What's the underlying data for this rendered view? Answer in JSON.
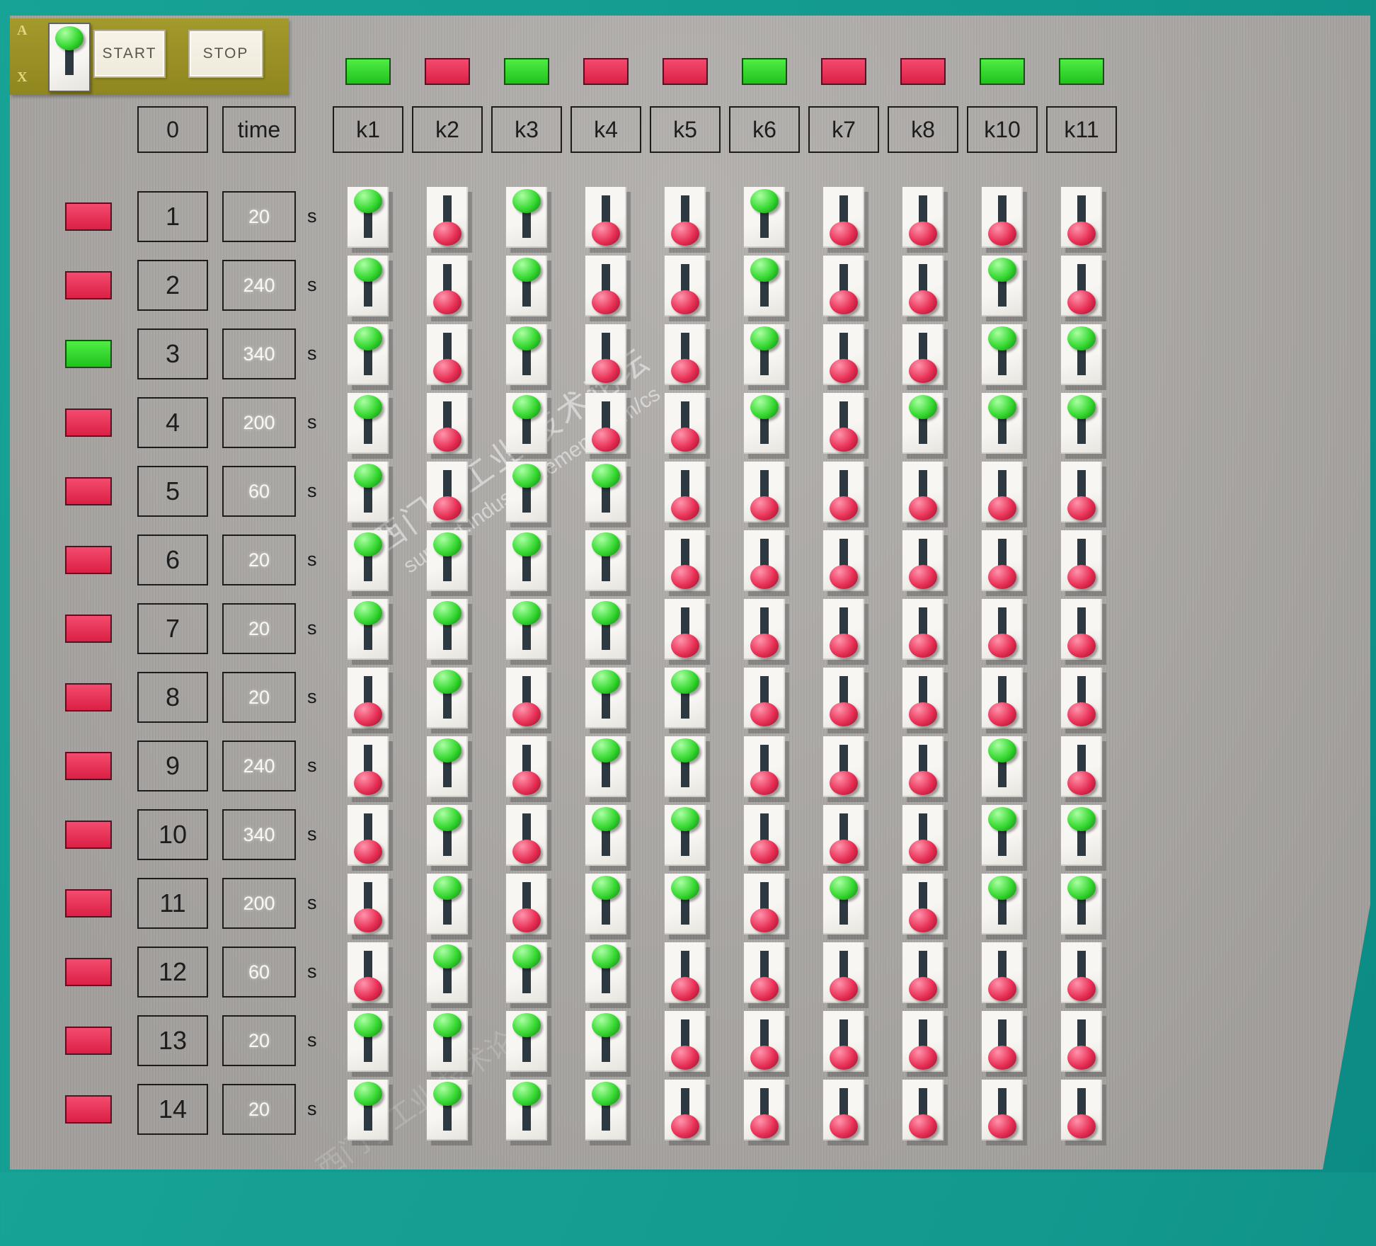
{
  "toolbar": {
    "start_label": "START",
    "stop_label": "STOP",
    "letters": [
      "A",
      "X"
    ],
    "master_switch_state": "up"
  },
  "header": {
    "zero_label": "0",
    "time_label": "time"
  },
  "columns": [
    "k1",
    "k2",
    "k3",
    "k4",
    "k5",
    "k6",
    "k7",
    "k8",
    "k10",
    "k11"
  ],
  "top_indicators": [
    "green",
    "red",
    "green",
    "red",
    "red",
    "green",
    "red",
    "red",
    "green",
    "green"
  ],
  "rows": [
    {
      "num": "1",
      "time": "20",
      "unit": "s",
      "indicator": "red",
      "switches": [
        "up",
        "down",
        "up",
        "down",
        "down",
        "up",
        "down",
        "down",
        "down",
        "down"
      ]
    },
    {
      "num": "2",
      "time": "240",
      "unit": "s",
      "indicator": "red",
      "switches": [
        "up",
        "down",
        "up",
        "down",
        "down",
        "up",
        "down",
        "down",
        "up",
        "down"
      ]
    },
    {
      "num": "3",
      "time": "340",
      "unit": "s",
      "indicator": "green",
      "switches": [
        "up",
        "down",
        "up",
        "down",
        "down",
        "up",
        "down",
        "down",
        "up",
        "up"
      ]
    },
    {
      "num": "4",
      "time": "200",
      "unit": "s",
      "indicator": "red",
      "switches": [
        "up",
        "down",
        "up",
        "down",
        "down",
        "up",
        "down",
        "up",
        "up",
        "up"
      ]
    },
    {
      "num": "5",
      "time": "60",
      "unit": "s",
      "indicator": "red",
      "switches": [
        "up",
        "down",
        "up",
        "up",
        "down",
        "down",
        "down",
        "down",
        "down",
        "down"
      ]
    },
    {
      "num": "6",
      "time": "20",
      "unit": "s",
      "indicator": "red",
      "switches": [
        "up",
        "up",
        "up",
        "up",
        "down",
        "down",
        "down",
        "down",
        "down",
        "down"
      ]
    },
    {
      "num": "7",
      "time": "20",
      "unit": "s",
      "indicator": "red",
      "switches": [
        "up",
        "up",
        "up",
        "up",
        "down",
        "down",
        "down",
        "down",
        "down",
        "down"
      ]
    },
    {
      "num": "8",
      "time": "20",
      "unit": "s",
      "indicator": "red",
      "switches": [
        "down",
        "up",
        "down",
        "up",
        "up",
        "down",
        "down",
        "down",
        "down",
        "down"
      ]
    },
    {
      "num": "9",
      "time": "240",
      "unit": "s",
      "indicator": "red",
      "switches": [
        "down",
        "up",
        "down",
        "up",
        "up",
        "down",
        "down",
        "down",
        "up",
        "down"
      ]
    },
    {
      "num": "10",
      "time": "340",
      "unit": "s",
      "indicator": "red",
      "switches": [
        "down",
        "up",
        "down",
        "up",
        "up",
        "down",
        "down",
        "down",
        "up",
        "up"
      ]
    },
    {
      "num": "11",
      "time": "200",
      "unit": "s",
      "indicator": "red",
      "switches": [
        "down",
        "up",
        "down",
        "up",
        "up",
        "down",
        "up",
        "down",
        "up",
        "up"
      ]
    },
    {
      "num": "12",
      "time": "60",
      "unit": "s",
      "indicator": "red",
      "switches": [
        "down",
        "up",
        "up",
        "up",
        "down",
        "down",
        "down",
        "down",
        "down",
        "down"
      ]
    },
    {
      "num": "13",
      "time": "20",
      "unit": "s",
      "indicator": "red",
      "switches": [
        "up",
        "up",
        "up",
        "up",
        "down",
        "down",
        "down",
        "down",
        "down",
        "down"
      ]
    },
    {
      "num": "14",
      "time": "20",
      "unit": "s",
      "indicator": "red",
      "switches": [
        "up",
        "up",
        "up",
        "up",
        "down",
        "down",
        "down",
        "down",
        "down",
        "down"
      ]
    }
  ],
  "watermark": {
    "line1": "西门子工业 技术论坛",
    "line2": "support.industry.siemens.com/cs"
  },
  "colors": {
    "surround_teal": "#13998e",
    "panel_grey": "#aca9a6",
    "toolbar_olive": "#9a9124",
    "button_face": "#f4f0e4",
    "lamp_green": "#2fd82b",
    "lamp_red": "#e62e50",
    "knob_green": "#35d830",
    "knob_red": "#e82f55"
  }
}
